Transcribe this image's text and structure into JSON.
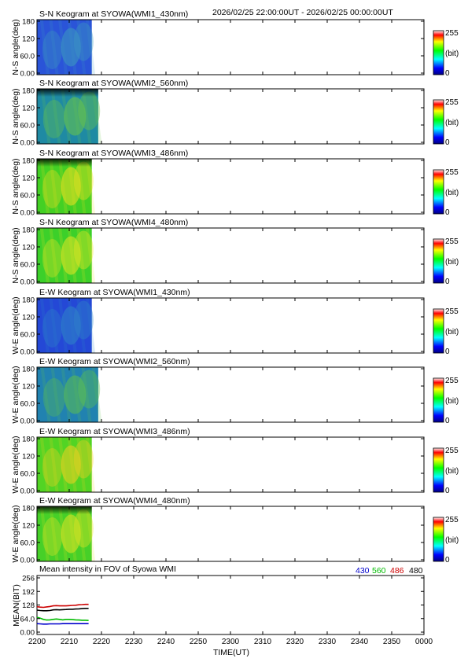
{
  "header": {
    "time_range": "2026/02/25 22:00:00UT - 2026/02/25 00:00:00UT"
  },
  "colorbar": {
    "max_label": "255",
    "unit_label": "(bit)",
    "min_label": "0"
  },
  "panels": [
    {
      "title": "S-N Keogram at SYOWA(WMI1_430nm)",
      "ylabel": "N-S angle(deg)",
      "yticks": [
        "180",
        "120",
        "60.0",
        "0.00"
      ],
      "base_color": "#2a54d8",
      "glow_color": "#3c9ac0",
      "dark_top": false,
      "data_end_x": "2217"
    },
    {
      "title": "S-N Keogram at SYOWA(WMI2_560nm)",
      "ylabel": "N-S angle(deg)",
      "yticks": [
        "180",
        "120",
        "60.0",
        "0.00"
      ],
      "base_color": "#1f8aa3",
      "glow_color": "#69c648",
      "dark_top": true,
      "data_end_x": "2219"
    },
    {
      "title": "S-N Keogram at SYOWA(WMI3_486nm)",
      "ylabel": "N-S angle(deg)",
      "yticks": [
        "180",
        "120",
        "60.0",
        "0.00"
      ],
      "base_color": "#43d024",
      "glow_color": "#f0e020",
      "dark_top": true,
      "data_end_x": "2217"
    },
    {
      "title": "S-N Keogram at SYOWA(WMI4_480nm)",
      "ylabel": "N-S angle(deg)",
      "yticks": [
        "180",
        "120",
        "60.0",
        "0.00"
      ],
      "base_color": "#3cd02a",
      "glow_color": "#e8e622",
      "dark_top": false,
      "data_end_x": "2217"
    },
    {
      "title": "E-W Keogram at SYOWA(WMI1_430nm)",
      "ylabel": "W-E angle(deg)",
      "yticks": [
        "180",
        "120",
        "60.0",
        "0.00"
      ],
      "base_color": "#2448d6",
      "glow_color": "#2f86c8",
      "dark_top": false,
      "data_end_x": "2217"
    },
    {
      "title": "E-W Keogram at SYOWA(WMI2_560nm)",
      "ylabel": "W-E angle(deg)",
      "yticks": [
        "180",
        "120",
        "60.0",
        "0.00"
      ],
      "base_color": "#2182b0",
      "glow_color": "#5cc050",
      "dark_top": false,
      "data_end_x": "2219"
    },
    {
      "title": "E-W Keogram at SYOWA(WMI3_486nm)",
      "ylabel": "W-E angle(deg)",
      "yticks": [
        "180",
        "120",
        "60.0",
        "0.00"
      ],
      "base_color": "#52d424",
      "glow_color": "#f2d020",
      "dark_top": false,
      "data_end_x": "2217"
    },
    {
      "title": "E-W Keogram at SYOWA(WMI4_480nm)",
      "ylabel": "W-E angle(deg)",
      "yticks": [
        "180",
        "120",
        "60.0",
        "0.00"
      ],
      "base_color": "#46d028",
      "glow_color": "#e4e424",
      "dark_top": true,
      "data_end_x": "2217"
    }
  ],
  "chart_data": {
    "type": "line",
    "title": "Mean intensity in FOV of Syowa WMI",
    "xlabel": "TIME(UT)",
    "ylabel": "MEAN(BIT)",
    "ylim": [
      0,
      256
    ],
    "yticks": [
      "256",
      "192",
      "128",
      "64.0",
      "0.00"
    ],
    "xticks": [
      "2200",
      "2210",
      "2220",
      "2230",
      "2240",
      "2250",
      "2300",
      "2310",
      "2320",
      "2330",
      "2340",
      "2350",
      "0000"
    ],
    "x_minutes": [
      0,
      1,
      2,
      3,
      4,
      5,
      6,
      7,
      8,
      9,
      10,
      11,
      12,
      13,
      14,
      15,
      16
    ],
    "series": [
      {
        "name": "430",
        "color": "#0000cc",
        "values": [
          40,
          39,
          38,
          38,
          39,
          39,
          39,
          39,
          40,
          40,
          40,
          40,
          40,
          40,
          40,
          40,
          40
        ]
      },
      {
        "name": "560",
        "color": "#00bb00",
        "values": [
          70,
          66,
          60,
          57,
          58,
          60,
          62,
          60,
          58,
          60,
          60,
          59,
          58,
          57,
          56,
          56,
          55
        ]
      },
      {
        "name": "486",
        "color": "#cc0000",
        "values": [
          120,
          118,
          117,
          119,
          121,
          124,
          125,
          124,
          124,
          124,
          125,
          126,
          127,
          129,
          130,
          131,
          131
        ]
      },
      {
        "name": "480",
        "color": "#000000",
        "values": [
          104,
          102,
          101,
          101,
          102,
          105,
          106,
          105,
          106,
          107,
          108,
          108,
          109,
          110,
          111,
          112,
          112
        ]
      }
    ]
  }
}
